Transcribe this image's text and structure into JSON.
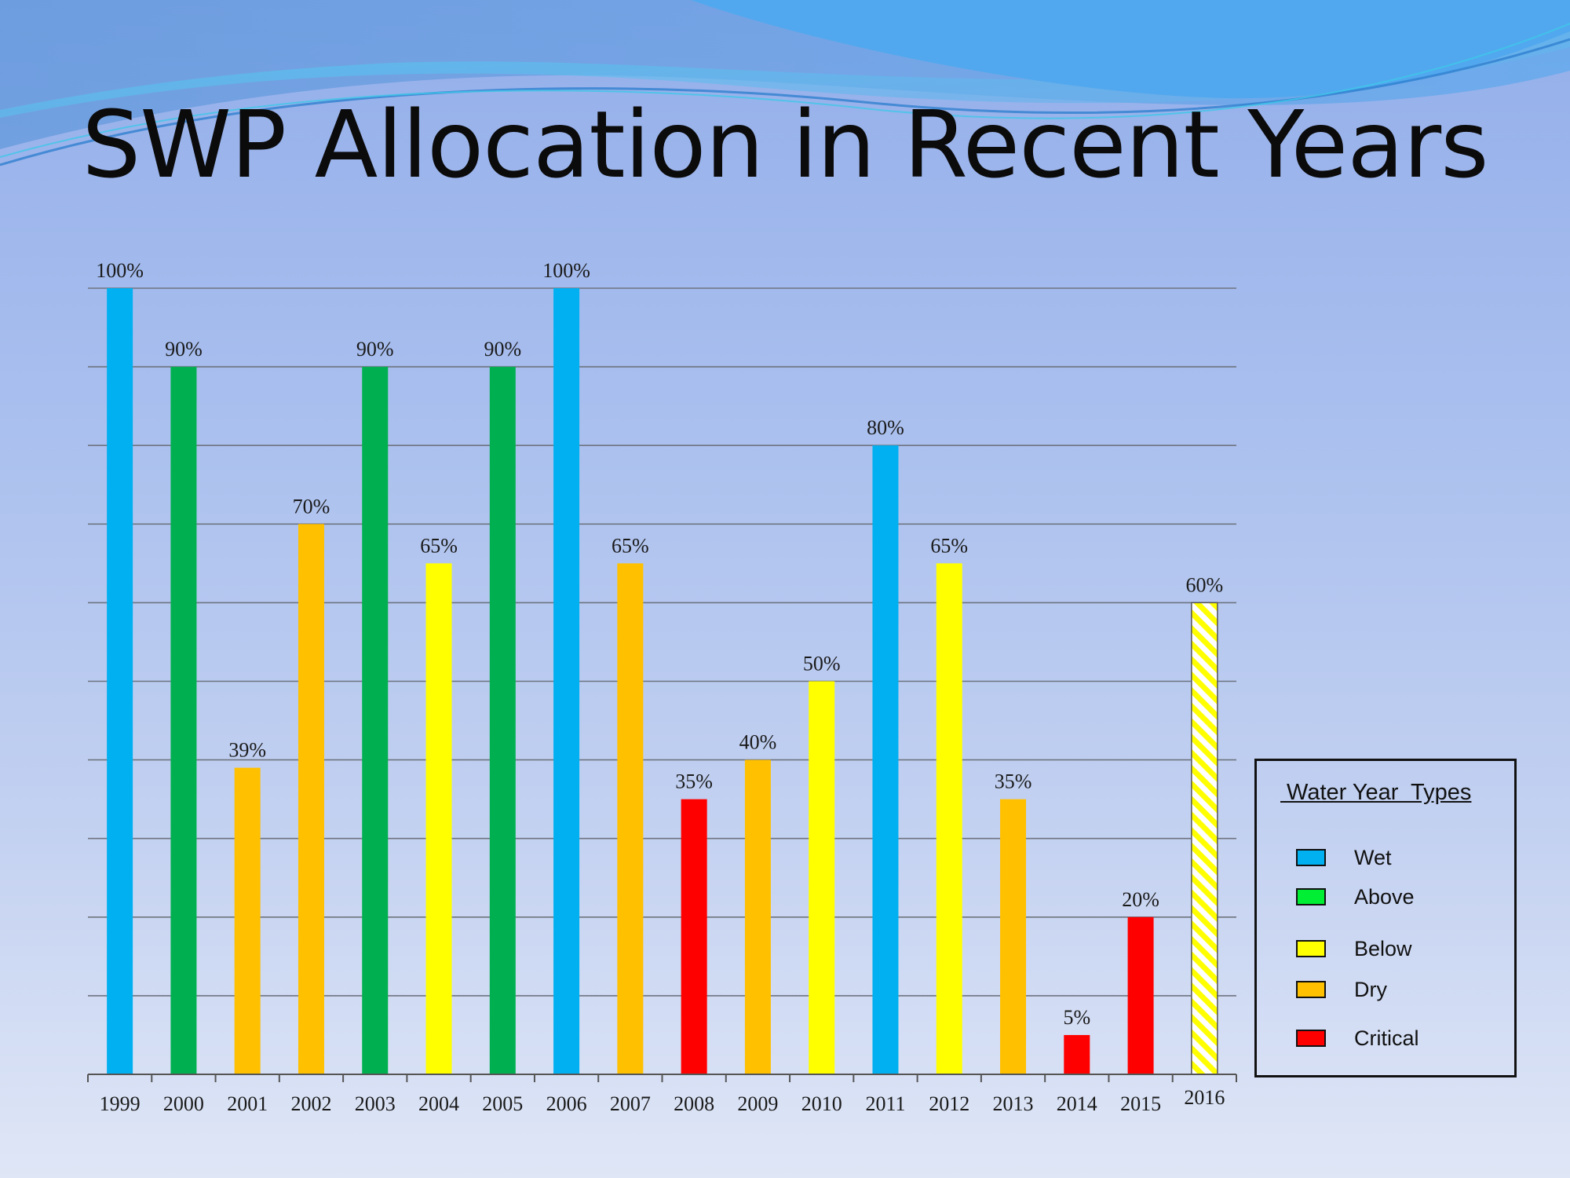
{
  "title": "SWP Allocation in Recent Years",
  "colors": {
    "wet": "#00b0f0",
    "above": "#00b050",
    "below": "#ffff00",
    "dry": "#ffc000",
    "critical": "#ff0000"
  },
  "chart_data": {
    "type": "bar",
    "title": "SWP Allocation in Recent Years",
    "xlabel": "",
    "ylabel": "",
    "ylim": [
      0,
      100
    ],
    "grid": true,
    "legend_position": "right",
    "categories": [
      "1999",
      "2000",
      "2001",
      "2002",
      "2003",
      "2004",
      "2005",
      "2006",
      "2007",
      "2008",
      "2009",
      "2010",
      "2011",
      "2012",
      "2013",
      "2014",
      "2015",
      "2016"
    ],
    "values": [
      100,
      90,
      39,
      70,
      90,
      65,
      90,
      100,
      65,
      35,
      40,
      50,
      80,
      65,
      35,
      5,
      20,
      60
    ],
    "value_labels": [
      "100%",
      "90%",
      "39%",
      "70%",
      "90%",
      "65%",
      "90%",
      "100%",
      "65%",
      "35%",
      "40%",
      "50%",
      "80%",
      "65%",
      "35%",
      "5%",
      "20%",
      "60%"
    ],
    "types": [
      "wet",
      "above",
      "dry",
      "dry",
      "above",
      "below",
      "above",
      "wet",
      "dry",
      "critical",
      "dry",
      "below",
      "wet",
      "below",
      "dry",
      "critical",
      "critical",
      "below-projected"
    ]
  },
  "legend": {
    "title": " Water Year  Types",
    "items": [
      {
        "key": "wet",
        "label": "Wet",
        "color": "#00b0f0"
      },
      {
        "key": "above",
        "label": "Above",
        "color": "#00ee33"
      },
      {
        "key": "below",
        "label": "Below",
        "color": "#ffff00"
      },
      {
        "key": "dry",
        "label": "Dry",
        "color": "#ffc000"
      },
      {
        "key": "critical",
        "label": "Critical",
        "color": "#ff0000"
      }
    ]
  }
}
